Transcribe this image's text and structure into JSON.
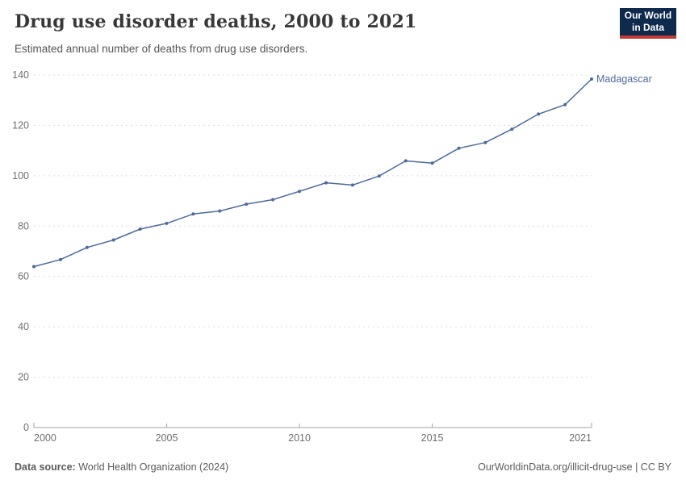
{
  "header": {
    "title": "Drug use disorder deaths, 2000 to 2021",
    "subtitle": "Estimated annual number of deaths from drug use disorders."
  },
  "logo": {
    "line1": "Our World",
    "line2": "in Data",
    "bg_color": "#0e2a4d",
    "accent_color": "#c43b33"
  },
  "chart_data": {
    "type": "line",
    "title": "Drug use disorder deaths, 2000 to 2021",
    "xlabel": "",
    "ylabel": "",
    "xlim": [
      2000,
      2021
    ],
    "ylim": [
      0,
      140
    ],
    "y_ticks": [
      0,
      20,
      40,
      60,
      80,
      100,
      120,
      140
    ],
    "x_ticks": [
      2000,
      2005,
      2010,
      2015,
      2021
    ],
    "grid": "horizontal-dashed",
    "legend_position": "end-of-line-label",
    "gridline_color": "#dcdcdc",
    "axis_color": "#a3a3a3",
    "tick_label_color": "#6e6e6e",
    "series": [
      {
        "name": "Madagascar",
        "color": "#4c6a9c",
        "x": [
          2000,
          2001,
          2002,
          2003,
          2004,
          2005,
          2006,
          2007,
          2008,
          2009,
          2010,
          2011,
          2012,
          2013,
          2014,
          2015,
          2016,
          2017,
          2018,
          2019,
          2020,
          2021
        ],
        "values": [
          63.9,
          66.7,
          71.5,
          74.5,
          78.8,
          81.1,
          84.8,
          86.0,
          88.7,
          90.5,
          93.8,
          97.2,
          96.3,
          99.9,
          105.9,
          105.0,
          110.9,
          113.2,
          118.5,
          124.5,
          128.2,
          138.4
        ]
      }
    ]
  },
  "footer": {
    "source_label": "Data source:",
    "source_text": " World Health Organization (2024)",
    "rights": "OurWorldinData.org/illicit-drug-use | CC BY"
  }
}
